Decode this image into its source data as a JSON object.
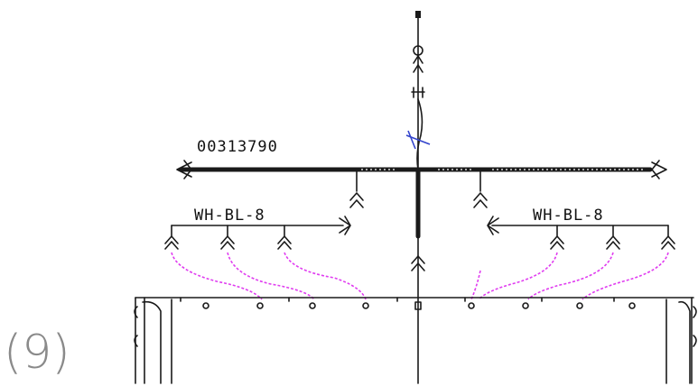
{
  "part_number": "00313790",
  "left_branch_label": "WH-BL-8",
  "right_branch_label": "WH-BL-8",
  "figure_label": "(9)",
  "colors": {
    "harness": "#1a1a1a",
    "wire_routing": "#e03cf0",
    "tie_mark": "#3344cc",
    "figure_label": "#8a8a8a"
  },
  "icons": [
    "connector-icon",
    "fastener-hole-icon"
  ]
}
